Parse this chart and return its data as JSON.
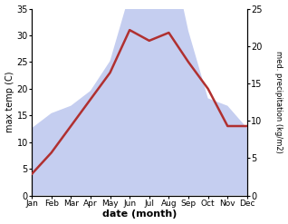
{
  "months": [
    "Jan",
    "Feb",
    "Mar",
    "Apr",
    "May",
    "Jun",
    "Jul",
    "Aug",
    "Sep",
    "Oct",
    "Nov",
    "Dec"
  ],
  "temperature": [
    4,
    8,
    13,
    18,
    23,
    31,
    29,
    30.5,
    25,
    20,
    13,
    13
  ],
  "precipitation": [
    9,
    11,
    12,
    14,
    18,
    27,
    33,
    34,
    22,
    13,
    12,
    9
  ],
  "temp_color": "#b03030",
  "precip_fill_color": "#c5cef0",
  "left_ylabel": "max temp (C)",
  "right_ylabel": "med. precipitation (kg/m2)",
  "xlabel": "date (month)",
  "temp_ylim": [
    0,
    35
  ],
  "temp_yticks": [
    0,
    5,
    10,
    15,
    20,
    25,
    30,
    35
  ],
  "precip_ylim": [
    0,
    25
  ],
  "precip_yticks": [
    0,
    5,
    10,
    15,
    20,
    25
  ],
  "precip_scale_factor": 1.4,
  "background": "#ffffff"
}
